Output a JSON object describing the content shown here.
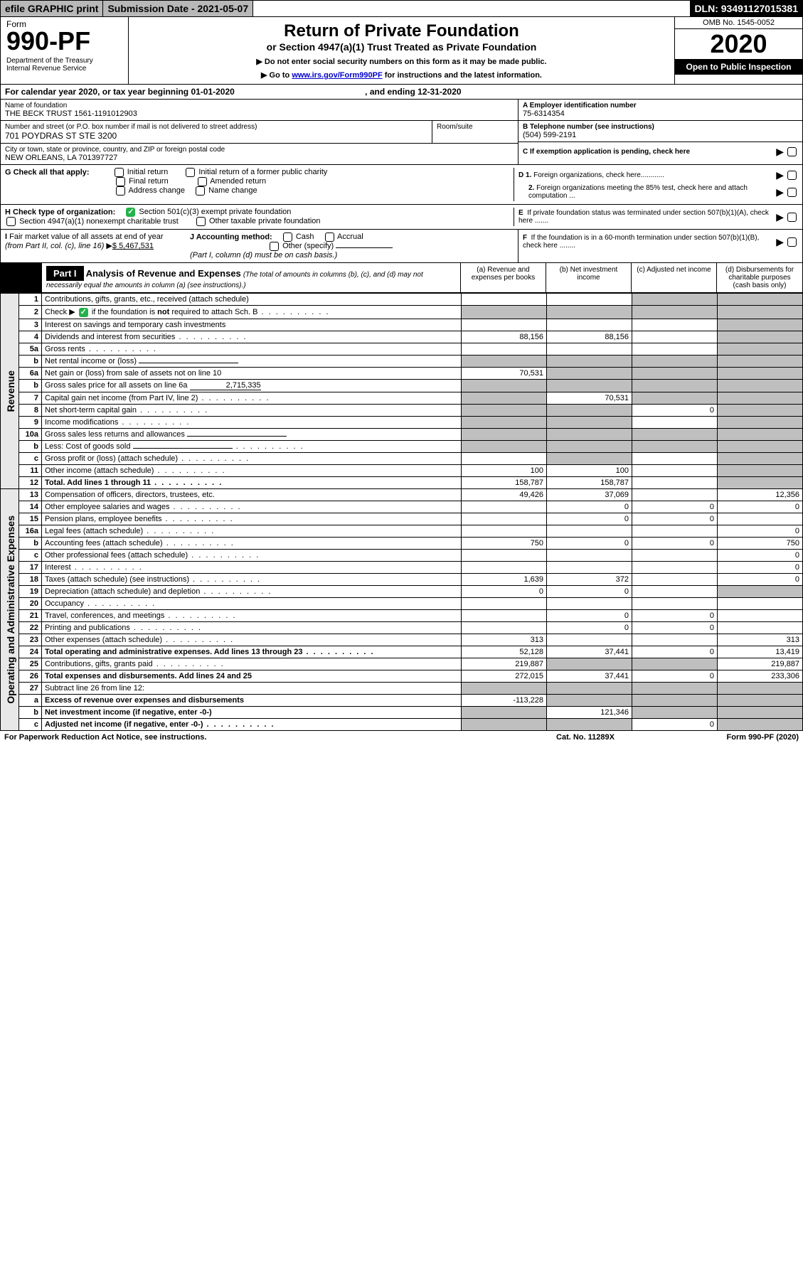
{
  "topbar": {
    "efile": "efile GRAPHIC print",
    "subdate_label": "Submission Date - 2021-05-07",
    "dln": "DLN: 93491127015381"
  },
  "header": {
    "form_prefix": "Form",
    "form_no": "990-PF",
    "dept": "Department of the Treasury\nInternal Revenue Service",
    "title": "Return of Private Foundation",
    "subtitle": "or Section 4947(a)(1) Trust Treated as Private Foundation",
    "note1": "▶ Do not enter social security numbers on this form as it may be made public.",
    "note2_pre": "▶ Go to ",
    "note2_link": "www.irs.gov/Form990PF",
    "note2_post": " for instructions and the latest information.",
    "omb": "OMB No. 1545-0052",
    "year": "2020",
    "open": "Open to Public Inspection"
  },
  "calyear": {
    "pre": "For calendar year 2020, or tax year beginning 01-01-2020",
    "mid": ", and ending 12-31-2020"
  },
  "ident": {
    "name_lbl": "Name of foundation",
    "name": "THE BECK TRUST 1561-1191012903",
    "addr_lbl": "Number and street (or P.O. box number if mail is not delivered to street address)",
    "addr": "701 POYDRAS ST STE 3200",
    "room_lbl": "Room/suite",
    "city_lbl": "City or town, state or province, country, and ZIP or foreign postal code",
    "city": "NEW ORLEANS, LA  701397727",
    "a_lbl": "A Employer identification number",
    "a_val": "75-6314354",
    "b_lbl": "B Telephone number (see instructions)",
    "b_val": "(504) 599-2191",
    "c_lbl": "C If exemption application is pending, check here"
  },
  "checks": {
    "g_lbl": "G Check all that apply:",
    "g_opts": [
      "Initial return",
      "Initial return of a former public charity",
      "Final return",
      "Amended return",
      "Address change",
      "Name change"
    ],
    "h_lbl": "H Check type of organization:",
    "h1": "Section 501(c)(3) exempt private foundation",
    "h2": "Section 4947(a)(1) nonexempt charitable trust",
    "h3": "Other taxable private foundation",
    "i_lbl": "I Fair market value of all assets at end of year (from Part II, col. (c), line 16) ",
    "i_val": "$ 5,467,531",
    "j_lbl": "J Accounting method:",
    "j_opts": [
      "Cash",
      "Accrual"
    ],
    "j_other": "Other (specify)",
    "j_note": "(Part I, column (d) must be on cash basis.)",
    "d1": "D 1. Foreign organizations, check here............",
    "d2": "2. Foreign organizations meeting the 85% test, check here and attach computation ...",
    "e": "E  If private foundation status was terminated under section 507(b)(1)(A), check here .......",
    "f": "F  If the foundation is in a 60-month termination under section 507(b)(1)(B), check here ........"
  },
  "part1": {
    "label": "Part I",
    "title": "Analysis of Revenue and Expenses",
    "title_note": "(The total of amounts in columns (b), (c), and (d) may not necessarily equal the amounts in column (a) (see instructions).)",
    "col_a": "(a)   Revenue and expenses per books",
    "col_b": "(b)  Net investment income",
    "col_c": "(c)  Adjusted net income",
    "col_d": "(d)  Disbursements for charitable purposes (cash basis only)"
  },
  "section_labels": {
    "revenue": "Revenue",
    "expenses": "Operating and Administrative Expenses"
  },
  "rows": [
    {
      "ln": "1",
      "desc": "Contributions, gifts, grants, etc., received (attach schedule)",
      "a": "",
      "b": "",
      "c": "s",
      "d": "s"
    },
    {
      "ln": "2",
      "desc": "Check ▶ ☑ if the foundation is not required to attach Sch. B",
      "dots": true,
      "a": "s",
      "b": "s",
      "c": "s",
      "d": "s",
      "checked": true
    },
    {
      "ln": "3",
      "desc": "Interest on savings and temporary cash investments",
      "a": "",
      "b": "",
      "c": "",
      "d": "s"
    },
    {
      "ln": "4",
      "desc": "Dividends and interest from securities",
      "dots": true,
      "a": "88,156",
      "b": "88,156",
      "c": "",
      "d": "s"
    },
    {
      "ln": "5a",
      "desc": "Gross rents",
      "dots": true,
      "a": "",
      "b": "",
      "c": "",
      "d": "s"
    },
    {
      "ln": "b",
      "desc": "Net rental income or (loss)",
      "inline": true,
      "a": "s",
      "b": "s",
      "c": "s",
      "d": "s"
    },
    {
      "ln": "6a",
      "desc": "Net gain or (loss) from sale of assets not on line 10",
      "a": "70,531",
      "b": "s",
      "c": "s",
      "d": "s"
    },
    {
      "ln": "b",
      "desc": "Gross sales price for all assets on line 6a",
      "inlineval": "2,715,335",
      "a": "s",
      "b": "s",
      "c": "s",
      "d": "s"
    },
    {
      "ln": "7",
      "desc": "Capital gain net income (from Part IV, line 2)",
      "dots": true,
      "a": "s",
      "b": "70,531",
      "c": "s",
      "d": "s"
    },
    {
      "ln": "8",
      "desc": "Net short-term capital gain",
      "dots": true,
      "a": "s",
      "b": "s",
      "c": "0",
      "d": "s"
    },
    {
      "ln": "9",
      "desc": "Income modifications",
      "dots": true,
      "a": "s",
      "b": "s",
      "c": "",
      "d": "s"
    },
    {
      "ln": "10a",
      "desc": "Gross sales less returns and allowances",
      "inline": true,
      "a": "s",
      "b": "s",
      "c": "s",
      "d": "s"
    },
    {
      "ln": "b",
      "desc": "Less: Cost of goods sold",
      "dots": true,
      "inline": true,
      "a": "s",
      "b": "s",
      "c": "s",
      "d": "s"
    },
    {
      "ln": "c",
      "desc": "Gross profit or (loss) (attach schedule)",
      "dots": true,
      "a": "",
      "b": "s",
      "c": "",
      "d": "s"
    },
    {
      "ln": "11",
      "desc": "Other income (attach schedule)",
      "dots": true,
      "a": "100",
      "b": "100",
      "c": "",
      "d": "s"
    },
    {
      "ln": "12",
      "desc": "Total. Add lines 1 through 11",
      "dots": true,
      "bold": true,
      "a": "158,787",
      "b": "158,787",
      "c": "",
      "d": "s"
    }
  ],
  "exp_rows": [
    {
      "ln": "13",
      "desc": "Compensation of officers, directors, trustees, etc.",
      "a": "49,426",
      "b": "37,069",
      "c": "",
      "d": "12,356"
    },
    {
      "ln": "14",
      "desc": "Other employee salaries and wages",
      "dots": true,
      "a": "",
      "b": "0",
      "c": "0",
      "d": "0"
    },
    {
      "ln": "15",
      "desc": "Pension plans, employee benefits",
      "dots": true,
      "a": "",
      "b": "0",
      "c": "0",
      "d": ""
    },
    {
      "ln": "16a",
      "desc": "Legal fees (attach schedule)",
      "dots": true,
      "a": "",
      "b": "",
      "c": "",
      "d": "0"
    },
    {
      "ln": "b",
      "desc": "Accounting fees (attach schedule)",
      "dots": true,
      "a": "750",
      "b": "0",
      "c": "0",
      "d": "750"
    },
    {
      "ln": "c",
      "desc": "Other professional fees (attach schedule)",
      "dots": true,
      "a": "",
      "b": "",
      "c": "",
      "d": "0"
    },
    {
      "ln": "17",
      "desc": "Interest",
      "dots": true,
      "a": "",
      "b": "",
      "c": "",
      "d": "0"
    },
    {
      "ln": "18",
      "desc": "Taxes (attach schedule) (see instructions)",
      "dots": true,
      "a": "1,639",
      "b": "372",
      "c": "",
      "d": "0"
    },
    {
      "ln": "19",
      "desc": "Depreciation (attach schedule) and depletion",
      "dots": true,
      "a": "0",
      "b": "0",
      "c": "",
      "d": "s"
    },
    {
      "ln": "20",
      "desc": "Occupancy",
      "dots": true,
      "a": "",
      "b": "",
      "c": "",
      "d": ""
    },
    {
      "ln": "21",
      "desc": "Travel, conferences, and meetings",
      "dots": true,
      "a": "",
      "b": "0",
      "c": "0",
      "d": ""
    },
    {
      "ln": "22",
      "desc": "Printing and publications",
      "dots": true,
      "a": "",
      "b": "0",
      "c": "0",
      "d": ""
    },
    {
      "ln": "23",
      "desc": "Other expenses (attach schedule)",
      "dots": true,
      "a": "313",
      "b": "",
      "c": "",
      "d": "313"
    },
    {
      "ln": "24",
      "desc": "Total operating and administrative expenses. Add lines 13 through 23",
      "dots": true,
      "bold": true,
      "a": "52,128",
      "b": "37,441",
      "c": "0",
      "d": "13,419"
    },
    {
      "ln": "25",
      "desc": "Contributions, gifts, grants paid",
      "dots": true,
      "a": "219,887",
      "b": "s",
      "c": "s",
      "d": "219,887"
    },
    {
      "ln": "26",
      "desc": "Total expenses and disbursements. Add lines 24 and 25",
      "bold": true,
      "a": "272,015",
      "b": "37,441",
      "c": "0",
      "d": "233,306"
    },
    {
      "ln": "27",
      "desc": "Subtract line 26 from line 12:",
      "a": "s",
      "b": "s",
      "c": "s",
      "d": "s"
    },
    {
      "ln": "a",
      "desc": "Excess of revenue over expenses and disbursements",
      "bold": true,
      "a": "-113,228",
      "b": "s",
      "c": "s",
      "d": "s"
    },
    {
      "ln": "b",
      "desc": "Net investment income (if negative, enter -0-)",
      "bold": true,
      "a": "s",
      "b": "121,346",
      "c": "s",
      "d": "s"
    },
    {
      "ln": "c",
      "desc": "Adjusted net income (if negative, enter -0-)",
      "dots": true,
      "bold": true,
      "a": "s",
      "b": "s",
      "c": "0",
      "d": "s"
    }
  ],
  "footer": {
    "left": "For Paperwork Reduction Act Notice, see instructions.",
    "mid": "Cat. No. 11289X",
    "right": "Form 990-PF (2020)"
  }
}
